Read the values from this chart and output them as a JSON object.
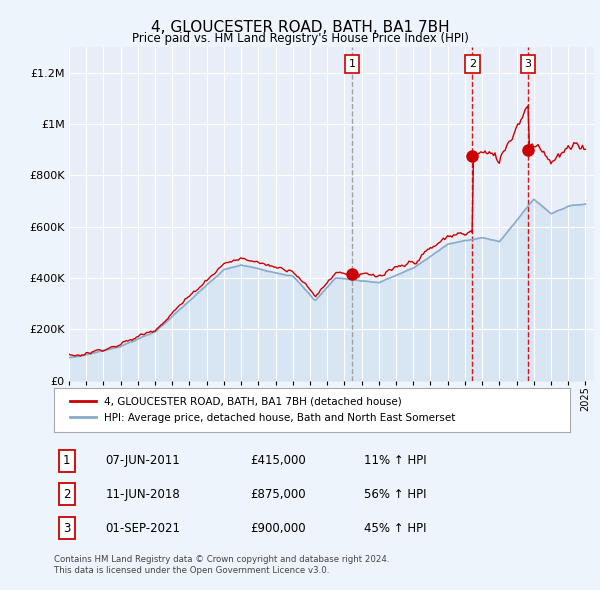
{
  "title": "4, GLOUCESTER ROAD, BATH, BA1 7BH",
  "subtitle": "Price paid vs. HM Land Registry's House Price Index (HPI)",
  "legend_line1": "4, GLOUCESTER ROAD, BATH, BA1 7BH (detached house)",
  "legend_line2": "HPI: Average price, detached house, Bath and North East Somerset",
  "footnote1": "Contains HM Land Registry data © Crown copyright and database right 2024.",
  "footnote2": "This data is licensed under the Open Government Licence v3.0.",
  "transactions": [
    {
      "label": "1",
      "date": "07-JUN-2011",
      "price": 415000,
      "hpi_pct": "11% ↑ HPI",
      "year": 2011.44,
      "vline_color": "#999999",
      "vline_style": "--"
    },
    {
      "label": "2",
      "date": "11-JUN-2018",
      "price": 875000,
      "hpi_pct": "56% ↑ HPI",
      "year": 2018.44,
      "vline_color": "#cc0000",
      "vline_style": "--"
    },
    {
      "label": "3",
      "date": "01-SEP-2021",
      "price": 900000,
      "hpi_pct": "45% ↑ HPI",
      "year": 2021.67,
      "vline_color": "#cc0000",
      "vline_style": "--"
    }
  ],
  "price_color": "#cc0000",
  "hpi_color": "#88aacc",
  "hpi_fill_color": "#cce0f0",
  "background_color": "#eef4fb",
  "plot_bg": "#e8eef8",
  "ylim": [
    0,
    1300000
  ],
  "yticks": [
    0,
    200000,
    400000,
    600000,
    800000,
    1000000,
    1200000
  ],
  "xlim_start": 1995.0,
  "xlim_end": 2025.5,
  "xticks": [
    1995,
    1996,
    1997,
    1998,
    1999,
    2000,
    2001,
    2002,
    2003,
    2004,
    2005,
    2006,
    2007,
    2008,
    2009,
    2010,
    2011,
    2012,
    2013,
    2014,
    2015,
    2016,
    2017,
    2018,
    2019,
    2020,
    2021,
    2022,
    2023,
    2024,
    2025
  ]
}
